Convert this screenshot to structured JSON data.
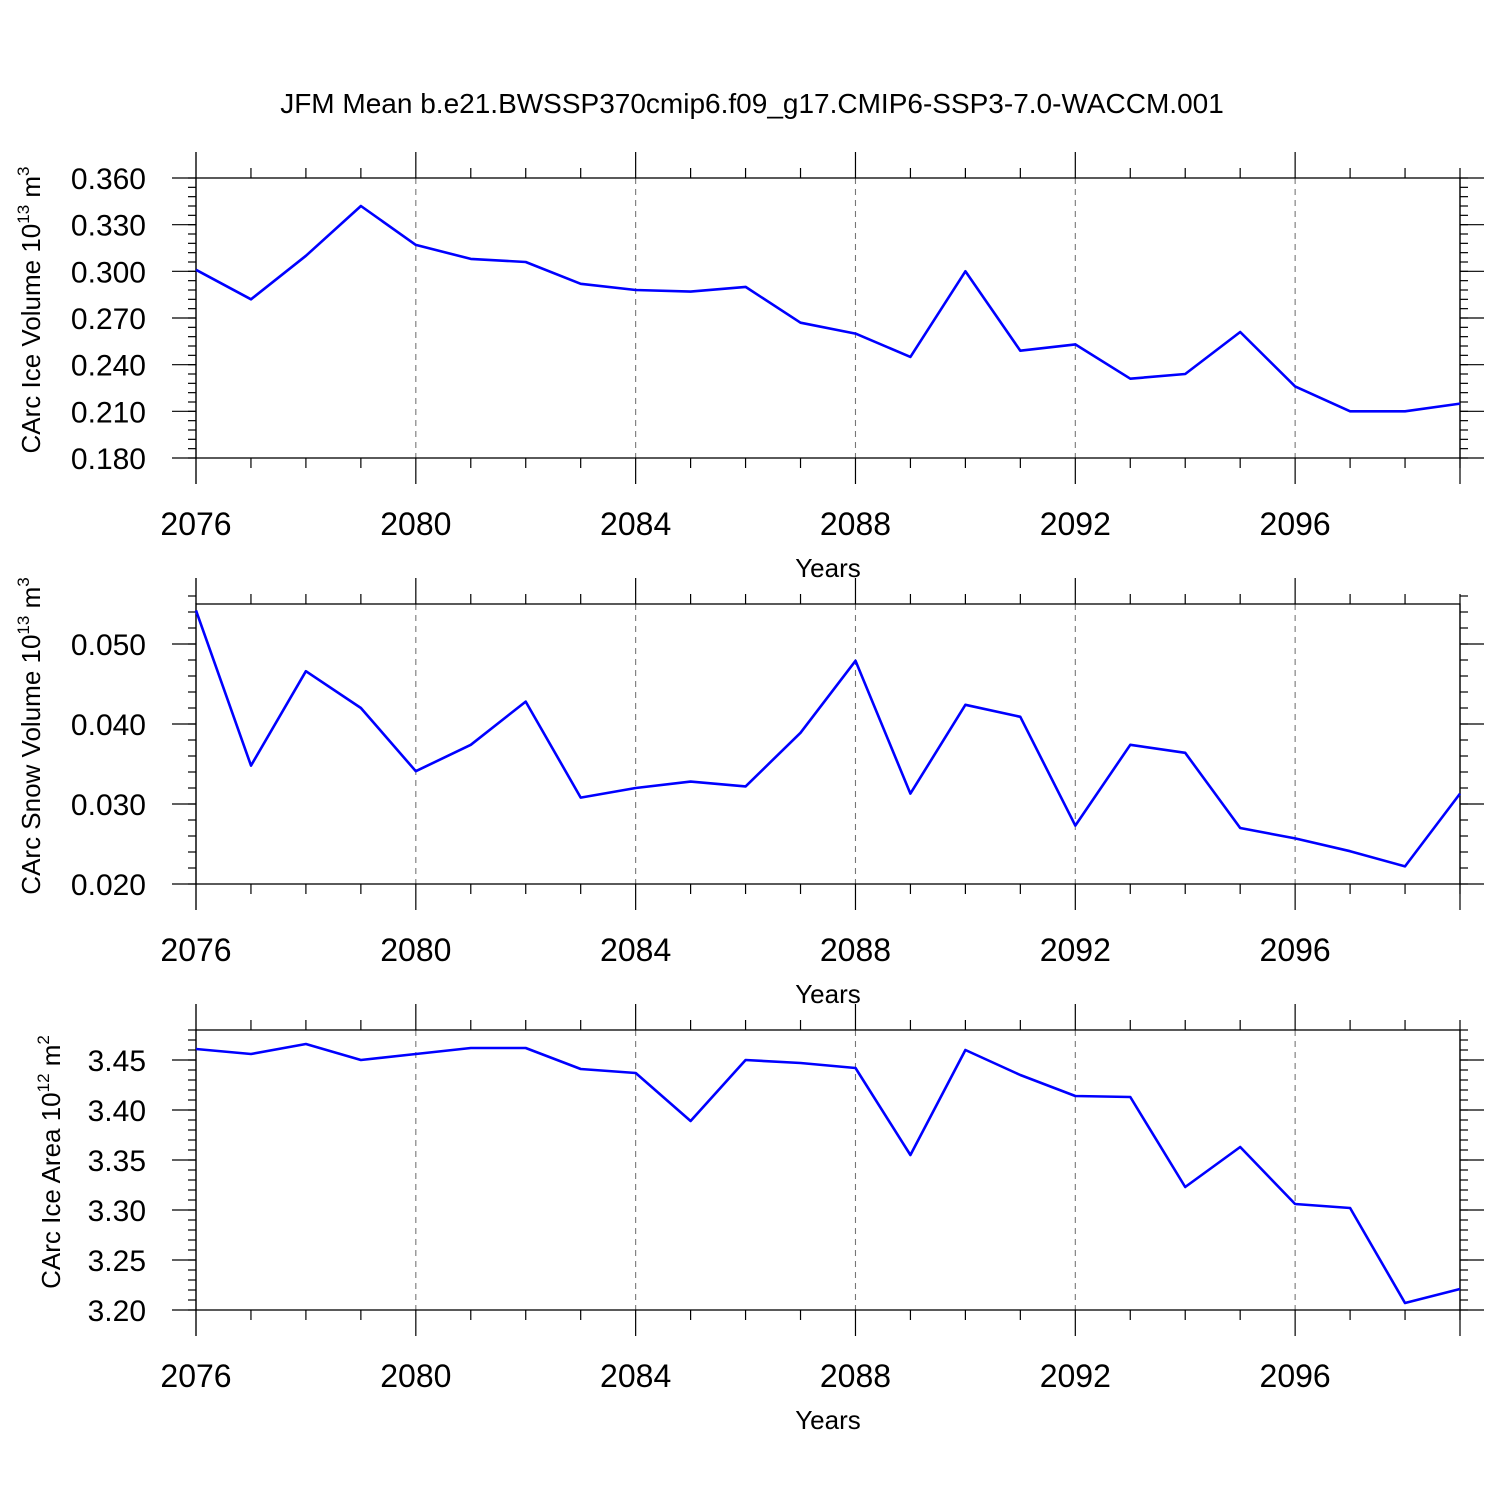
{
  "title": "JFM Mean b.e21.BWSSP370cmip6.f09_g17.CMIP6-SSP3-7.0-WACCM.001",
  "colors": {
    "line": "#0000ff",
    "axis": "#000000",
    "grid": "#777777"
  },
  "chart_data": [
    {
      "type": "line",
      "ylabel": "CArc Ice Volume 10",
      "ylabel_exp": "13",
      "ylabel_unit": " m",
      "ylabel_unit_exp": "3",
      "xlabel": "Years",
      "xlim": [
        2076,
        2099
      ],
      "ylim": [
        0.18,
        0.36
      ],
      "yticks": [
        0.18,
        0.21,
        0.24,
        0.27,
        0.3,
        0.33,
        0.36
      ],
      "ytick_labels": [
        "0.180",
        "0.210",
        "0.240",
        "0.270",
        "0.300",
        "0.330",
        "0.360"
      ],
      "yminor_step": 0.006,
      "xticks": [
        2076,
        2080,
        2084,
        2088,
        2092,
        2096
      ],
      "xtick_labels": [
        "2076",
        "2080",
        "2084",
        "2088",
        "2092",
        "2096"
      ],
      "grid_x": true,
      "x": [
        2076,
        2077,
        2078,
        2079,
        2080,
        2081,
        2082,
        2083,
        2084,
        2085,
        2086,
        2087,
        2088,
        2089,
        2090,
        2091,
        2092,
        2093,
        2094,
        2095,
        2096,
        2097,
        2098,
        2099
      ],
      "values": [
        0.301,
        0.282,
        0.31,
        0.342,
        0.317,
        0.308,
        0.306,
        0.292,
        0.288,
        0.287,
        0.29,
        0.267,
        0.26,
        0.245,
        0.3,
        0.249,
        0.253,
        0.231,
        0.234,
        0.261,
        0.226,
        0.21,
        0.21,
        0.215
      ]
    },
    {
      "type": "line",
      "ylabel": "CArc Snow Volume 10",
      "ylabel_exp": "13",
      "ylabel_unit": " m",
      "ylabel_unit_exp": "3",
      "xlabel": "Years",
      "xlim": [
        2076,
        2099
      ],
      "ylim": [
        0.02,
        0.055
      ],
      "yticks": [
        0.02,
        0.03,
        0.04,
        0.05
      ],
      "ytick_labels": [
        "0.020",
        "0.030",
        "0.040",
        "0.050"
      ],
      "yminor_step": 0.002,
      "xticks": [
        2076,
        2080,
        2084,
        2088,
        2092,
        2096
      ],
      "xtick_labels": [
        "2076",
        "2080",
        "2084",
        "2088",
        "2092",
        "2096"
      ],
      "grid_x": true,
      "x": [
        2076,
        2077,
        2078,
        2079,
        2080,
        2081,
        2082,
        2083,
        2084,
        2085,
        2086,
        2087,
        2088,
        2089,
        2090,
        2091,
        2092,
        2093,
        2094,
        2095,
        2096,
        2097,
        2098,
        2099
      ],
      "values": [
        0.0542,
        0.0348,
        0.0466,
        0.042,
        0.0341,
        0.0374,
        0.0428,
        0.0308,
        0.032,
        0.0328,
        0.0322,
        0.0389,
        0.0479,
        0.0313,
        0.0424,
        0.0409,
        0.0273,
        0.0374,
        0.0364,
        0.027,
        0.0257,
        0.0241,
        0.0222,
        0.0313
      ]
    },
    {
      "type": "line",
      "ylabel": "CArc Ice Area 10",
      "ylabel_exp": "12",
      "ylabel_unit": " m",
      "ylabel_unit_exp": "2",
      "xlabel": "Years",
      "xlim": [
        2076,
        2099
      ],
      "ylim": [
        3.2,
        3.48
      ],
      "yticks": [
        3.2,
        3.25,
        3.3,
        3.35,
        3.4,
        3.45
      ],
      "ytick_labels": [
        "3.20",
        "3.25",
        "3.30",
        "3.35",
        "3.40",
        "3.45"
      ],
      "yminor_step": 0.01,
      "xticks": [
        2076,
        2080,
        2084,
        2088,
        2092,
        2096
      ],
      "xtick_labels": [
        "2076",
        "2080",
        "2084",
        "2088",
        "2092",
        "2096"
      ],
      "grid_x": true,
      "x": [
        2076,
        2077,
        2078,
        2079,
        2080,
        2081,
        2082,
        2083,
        2084,
        2085,
        2086,
        2087,
        2088,
        2089,
        2090,
        2091,
        2092,
        2093,
        2094,
        2095,
        2096,
        2097,
        2098,
        2099
      ],
      "values": [
        3.461,
        3.456,
        3.466,
        3.45,
        3.456,
        3.462,
        3.462,
        3.441,
        3.437,
        3.389,
        3.45,
        3.447,
        3.442,
        3.355,
        3.46,
        3.435,
        3.414,
        3.413,
        3.323,
        3.363,
        3.306,
        3.302,
        3.207,
        3.221
      ]
    }
  ]
}
